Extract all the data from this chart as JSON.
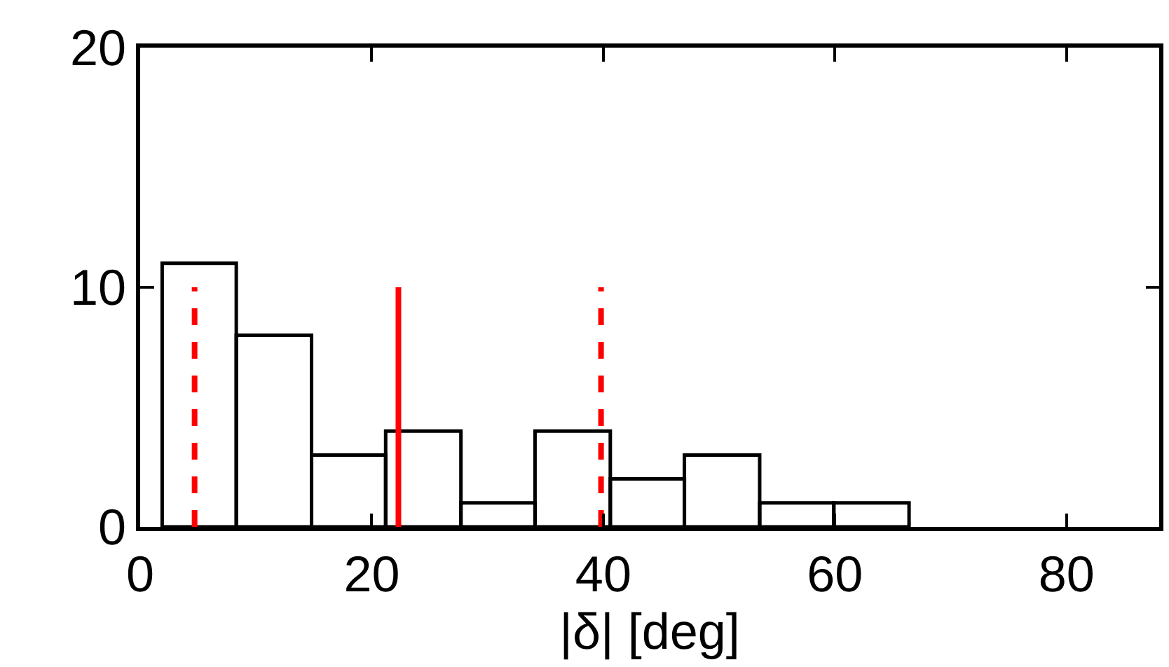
{
  "chart_data": {
    "type": "histogram",
    "xlabel": "|δ| [deg]",
    "bins": [
      1.9,
      8.3,
      14.8,
      21.2,
      27.7,
      34.1,
      40.6,
      47.0,
      53.5,
      59.9,
      66.4
    ],
    "values": [
      11,
      8,
      3,
      4,
      1,
      4,
      2,
      3,
      1,
      1
    ],
    "color": "#000000",
    "series": [
      {
        "type": "line",
        "x": [
          4.7,
          4.7
        ],
        "values": [
          0,
          10
        ],
        "color": "#ff0000",
        "line_style": "dashed"
      },
      {
        "type": "line",
        "x": [
          22.3,
          22.3
        ],
        "values": [
          0,
          10
        ],
        "color": "#ff0000",
        "line_style": "solid"
      },
      {
        "type": "line",
        "x": [
          39.8,
          39.8
        ],
        "values": [
          0,
          10
        ],
        "color": "#ff0000",
        "line_style": "dashed"
      }
    ],
    "xlim": [
      0,
      88
    ],
    "xticks": [
      0,
      20,
      40,
      60,
      80
    ],
    "ylim": [
      0,
      20
    ],
    "yticks": [
      0,
      10,
      20
    ]
  }
}
